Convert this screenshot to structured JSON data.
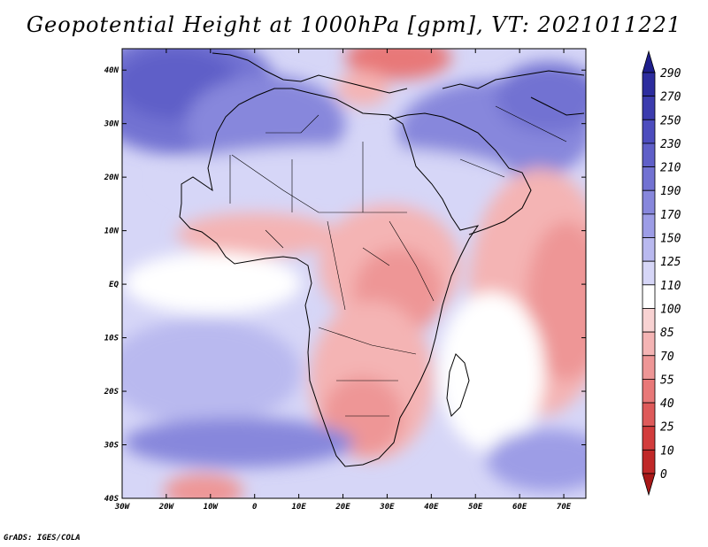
{
  "title": "Geopotential Height at 1000hPa [gpm], VT: 2021011221",
  "credit": "GrADS: IGES/COLA",
  "colorbar": {
    "levels": [
      "290",
      "270",
      "250",
      "230",
      "210",
      "190",
      "170",
      "150",
      "125",
      "110",
      "100",
      "85",
      "70",
      "55",
      "40",
      "25",
      "10",
      "0"
    ],
    "colors": [
      "#1e1e8c",
      "#2d2d9e",
      "#3c3cae",
      "#4d4dbe",
      "#5f5fc8",
      "#7272d2",
      "#8787dc",
      "#9d9de6",
      "#b9b9ef",
      "#d6d6f7",
      "#ffffff",
      "#f8d2d2",
      "#f4b4b4",
      "#ee9696",
      "#e87878",
      "#de5a5a",
      "#d23c3c",
      "#c02828",
      "#a81818"
    ]
  },
  "axes": {
    "lat_labels": [
      "40N",
      "30N",
      "20N",
      "10N",
      "EQ",
      "10S",
      "20S",
      "30S",
      "40S"
    ],
    "lon_labels": [
      "30W",
      "20W",
      "10W",
      "0",
      "10E",
      "20E",
      "30E",
      "40E",
      "50E",
      "60E",
      "70E"
    ],
    "lat_range": [
      -40,
      44
    ],
    "lon_range": [
      -30,
      75
    ]
  }
}
